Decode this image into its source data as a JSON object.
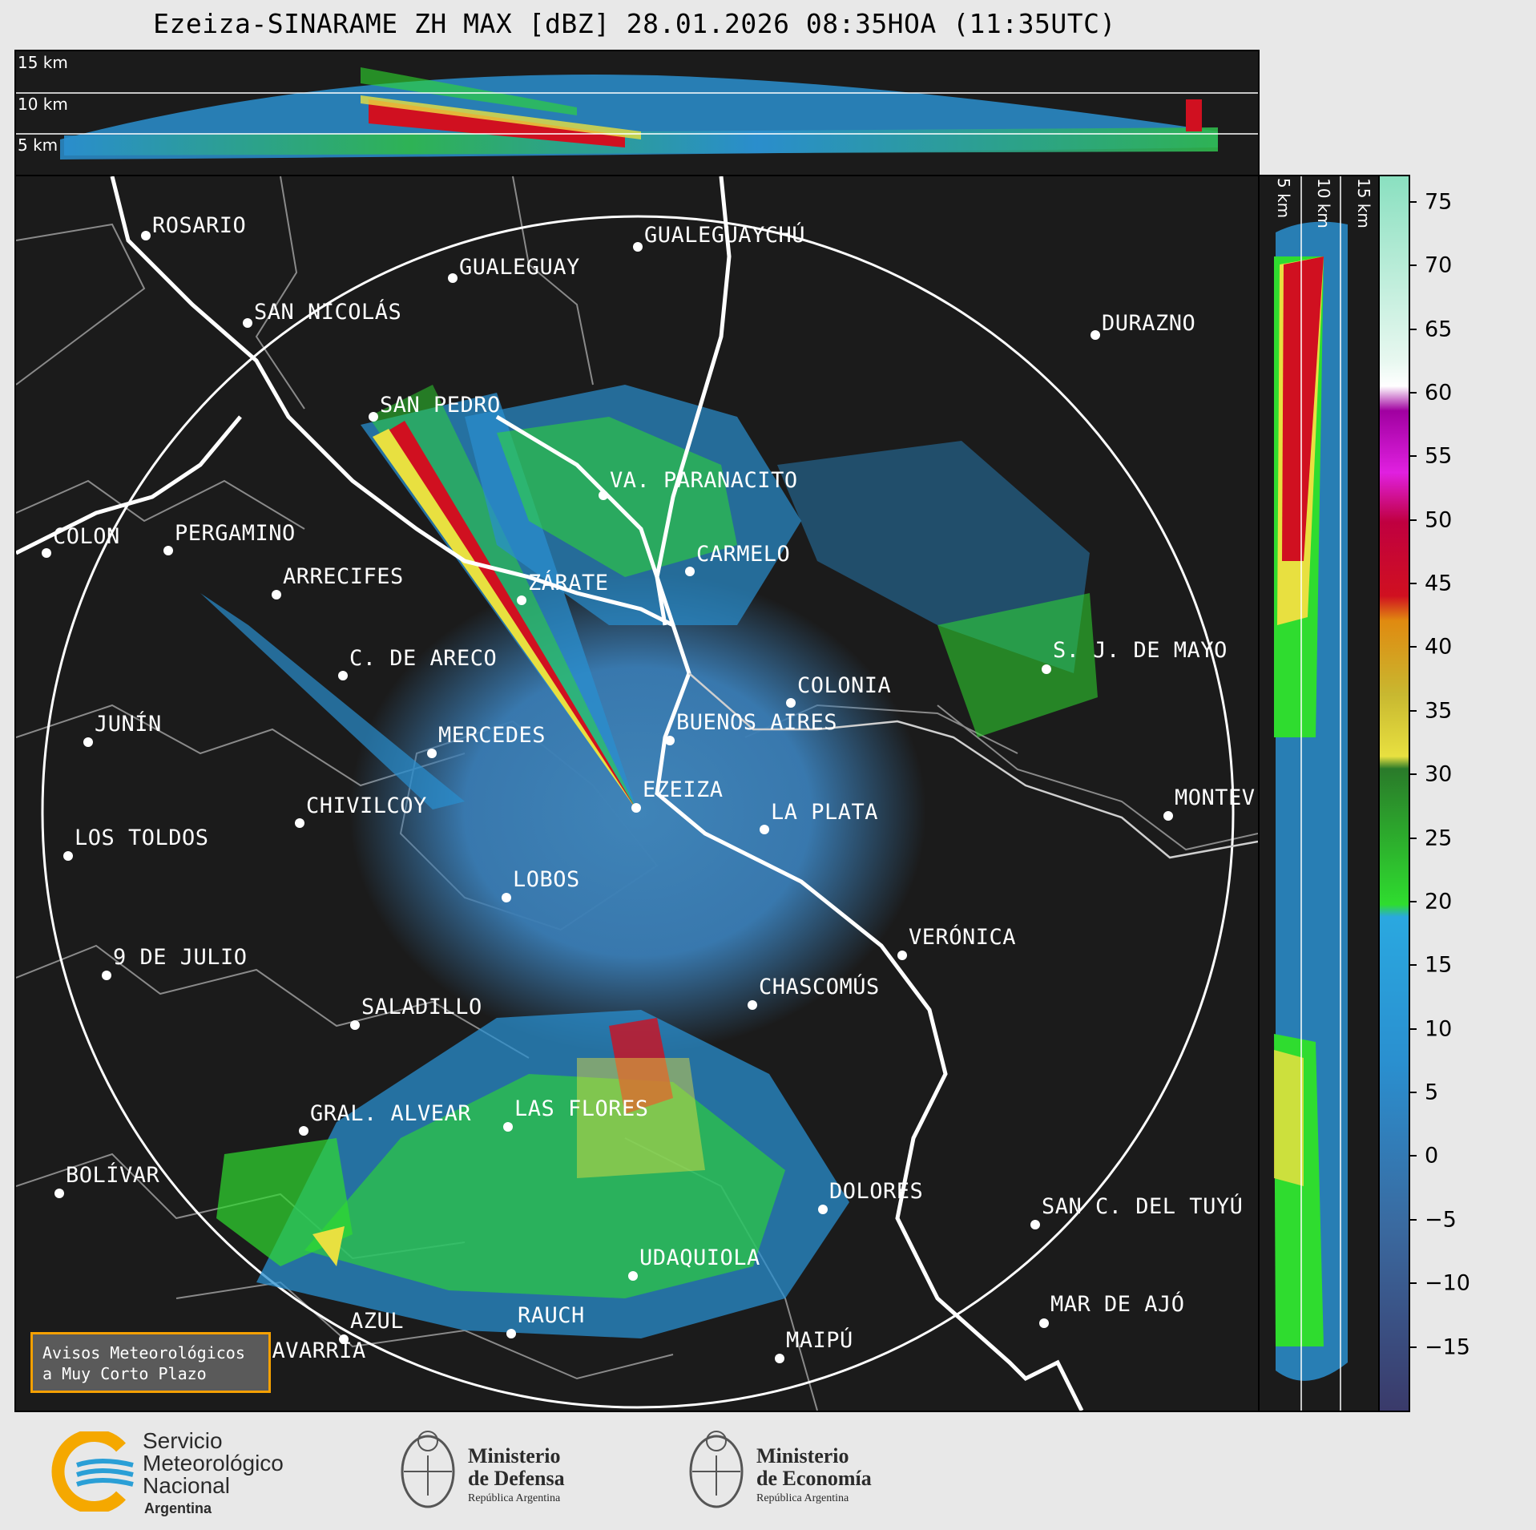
{
  "title": "Ezeiza-SINARAME ZH MAX [dBZ] 28.01.2026 08:35HOA (11:35UTC)",
  "top_panel": {
    "height_labels": [
      "15 km",
      "10 km",
      "5 km"
    ]
  },
  "side_panel": {
    "height_labels": [
      "5 km",
      "10 km",
      "15 km"
    ]
  },
  "colorbar": {
    "unit": "dBZ",
    "ticks": [
      "75",
      "70",
      "65",
      "60",
      "55",
      "50",
      "45",
      "40",
      "35",
      "30",
      "25",
      "20",
      "15",
      "10",
      "5",
      "0",
      "−5",
      "−10",
      "−15"
    ],
    "range": [
      -20,
      77
    ],
    "colors": {
      "blue_range": "#2a8fcf",
      "green_range": "#2fdc2f",
      "yellow_range": "#e8e040",
      "orange_range": "#e08a10",
      "red_range": "#d01020",
      "magenta_range": "#e020e0",
      "white": "#ffffff",
      "mint_range": "#8ae0c0"
    }
  },
  "cities": [
    {
      "name": "ROSARIO"
    },
    {
      "name": "GUALEGUAYCHÚ"
    },
    {
      "name": "GUALEGUAY"
    },
    {
      "name": "SAN NICOLÁS"
    },
    {
      "name": "DURAZNO"
    },
    {
      "name": "SAN PEDRO"
    },
    {
      "name": "VA. PARANACITO"
    },
    {
      "name": "COLON"
    },
    {
      "name": "PERGAMINO"
    },
    {
      "name": "CARMELO"
    },
    {
      "name": "ARRECIFES"
    },
    {
      "name": "ZÁRATE"
    },
    {
      "name": "S. J. DE MAYO"
    },
    {
      "name": "C. DE ARECO"
    },
    {
      "name": "COLONIA"
    },
    {
      "name": "BUENOS AIRES"
    },
    {
      "name": "JUNÍN"
    },
    {
      "name": "MERCEDES"
    },
    {
      "name": "MONTEV"
    },
    {
      "name": "EZEIZA"
    },
    {
      "name": "CHIVILCOY"
    },
    {
      "name": "LA PLATA"
    },
    {
      "name": "LOS TOLDOS"
    },
    {
      "name": "LOBOS"
    },
    {
      "name": "VERÓNICA"
    },
    {
      "name": "9 DE JULIO"
    },
    {
      "name": "CHASCOMÚS"
    },
    {
      "name": "SALADILLO"
    },
    {
      "name": "GRAL. ALVEAR"
    },
    {
      "name": "LAS FLORES"
    },
    {
      "name": "BOLÍVAR"
    },
    {
      "name": "DOLORES"
    },
    {
      "name": "SAN C. DEL TUYÚ"
    },
    {
      "name": "UDAQUIOLA"
    },
    {
      "name": "MAR DE AJÓ"
    },
    {
      "name": "AZUL"
    },
    {
      "name": "RAUCH"
    },
    {
      "name": "OLAVARRÍA"
    },
    {
      "name": "MAIPÚ"
    }
  ],
  "warning_box": {
    "line1": "Avisos Meteorológicos",
    "line2": "a Muy Corto Plazo"
  },
  "footer": {
    "smn": {
      "line1": "Servicio",
      "line2": "Meteorológico",
      "line3": "Nacional",
      "line4": "Argentina"
    },
    "defensa": {
      "line1": "Ministerio",
      "line2": "de Defensa",
      "line3": "República Argentina"
    },
    "economia": {
      "line1": "Ministerio",
      "line2": "de Economía",
      "line3": "República Argentina"
    }
  }
}
